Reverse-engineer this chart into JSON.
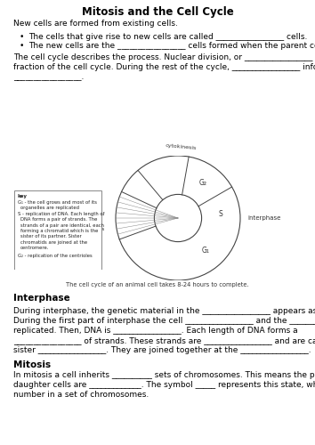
{
  "title": "Mitosis and the Cell Cycle",
  "bg_color": "#ffffff",
  "intro_line": "New cells are formed from existing cells.",
  "bullets": [
    "The cells that give rise to new cells are called _________________ cells.",
    "The new cells are the _________________ cells formed when the parent cell divides."
  ],
  "cell_cycle_text": [
    "The cell cycle describes the process. Nuclear division, or _________________ takes only a small",
    "fraction of the cell cycle. During the rest of the cycle, _________________ information is",
    "_________________."
  ],
  "diagram_caption": "The cell cycle of an animal cell takes 8-24 hours to complete.",
  "interphase_heading": "Interphase",
  "interphase_lines": [
    "During interphase, the genetic material in the _________________ appears as _________________.",
    "During the first part of interphase the cell _________________ and the _________________ are",
    "replicated. Then, DNA is _________________. Each length of DNA forms a",
    "_________________ of strands. These strands are _________________ and are called",
    "sister _________________. They are joined together at the _________________."
  ],
  "mitosis_heading": "Mitosis",
  "mitosis_lines": [
    "In mitosis a cell inherits __________ sets of chromosomes. This means the parent cell and the",
    "daughter cells are _____________. The symbol _____ represents this state, where n = the",
    "number in a set of chromosomes."
  ],
  "key_lines": [
    "key",
    "G₁ - the cell grows and most of its",
    "  organelles are replicated",
    "S - replication of DNA. Each length of",
    "  DNA forms a pair of strands. The",
    "  strands of a pair are identical, each",
    "  forming a chromatid which is the",
    "  sister of its partner. Sister",
    "  chromatids are joined at the",
    "  centromere.",
    "G₂ - replication of the centrioles"
  ]
}
